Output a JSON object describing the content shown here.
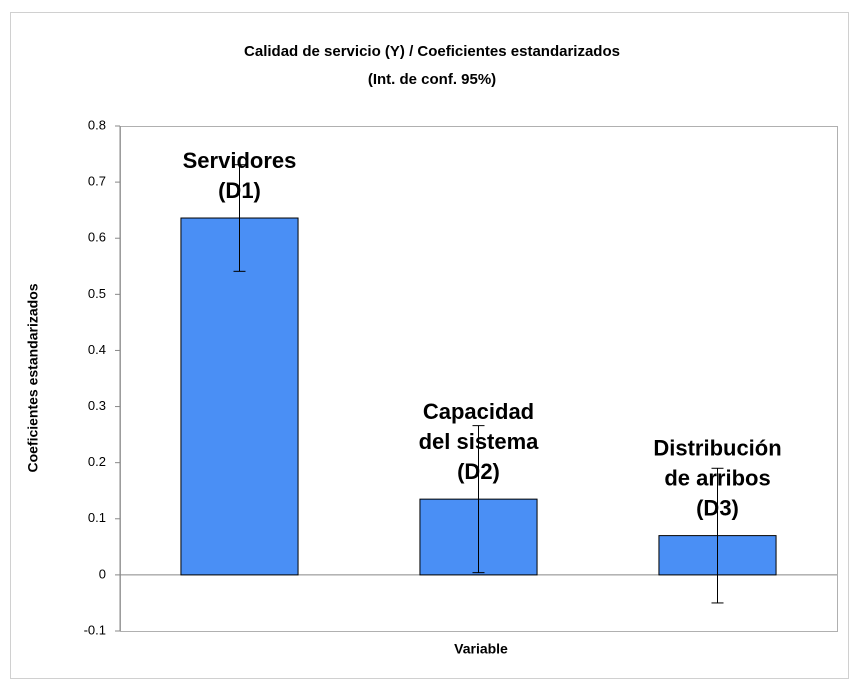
{
  "chart_data": {
    "type": "bar",
    "title": "Calidad de servicio (Y) / Coeficientes estandarizados",
    "subtitle": "(Int. de conf. 95%)",
    "x_label": "Variable",
    "y_label": "Coeficientes estandarizados",
    "categories": [
      [
        "Servidores",
        "(D1)"
      ],
      [
        "Capacidad",
        "del sistema",
        "(D2)"
      ],
      [
        "Distribución",
        "de arribos",
        "(D3)"
      ]
    ],
    "values": [
      0.636,
      0.135,
      0.07
    ],
    "errors": [
      0.095,
      0.131,
      0.12
    ],
    "color": "#4a8ff5",
    "ylim": [
      -0.1,
      0.8
    ],
    "yticks": [
      -0.1,
      0,
      0.1,
      0.2,
      0.3,
      0.4,
      0.5,
      0.6,
      0.7,
      0.8
    ],
    "grid": false
  }
}
